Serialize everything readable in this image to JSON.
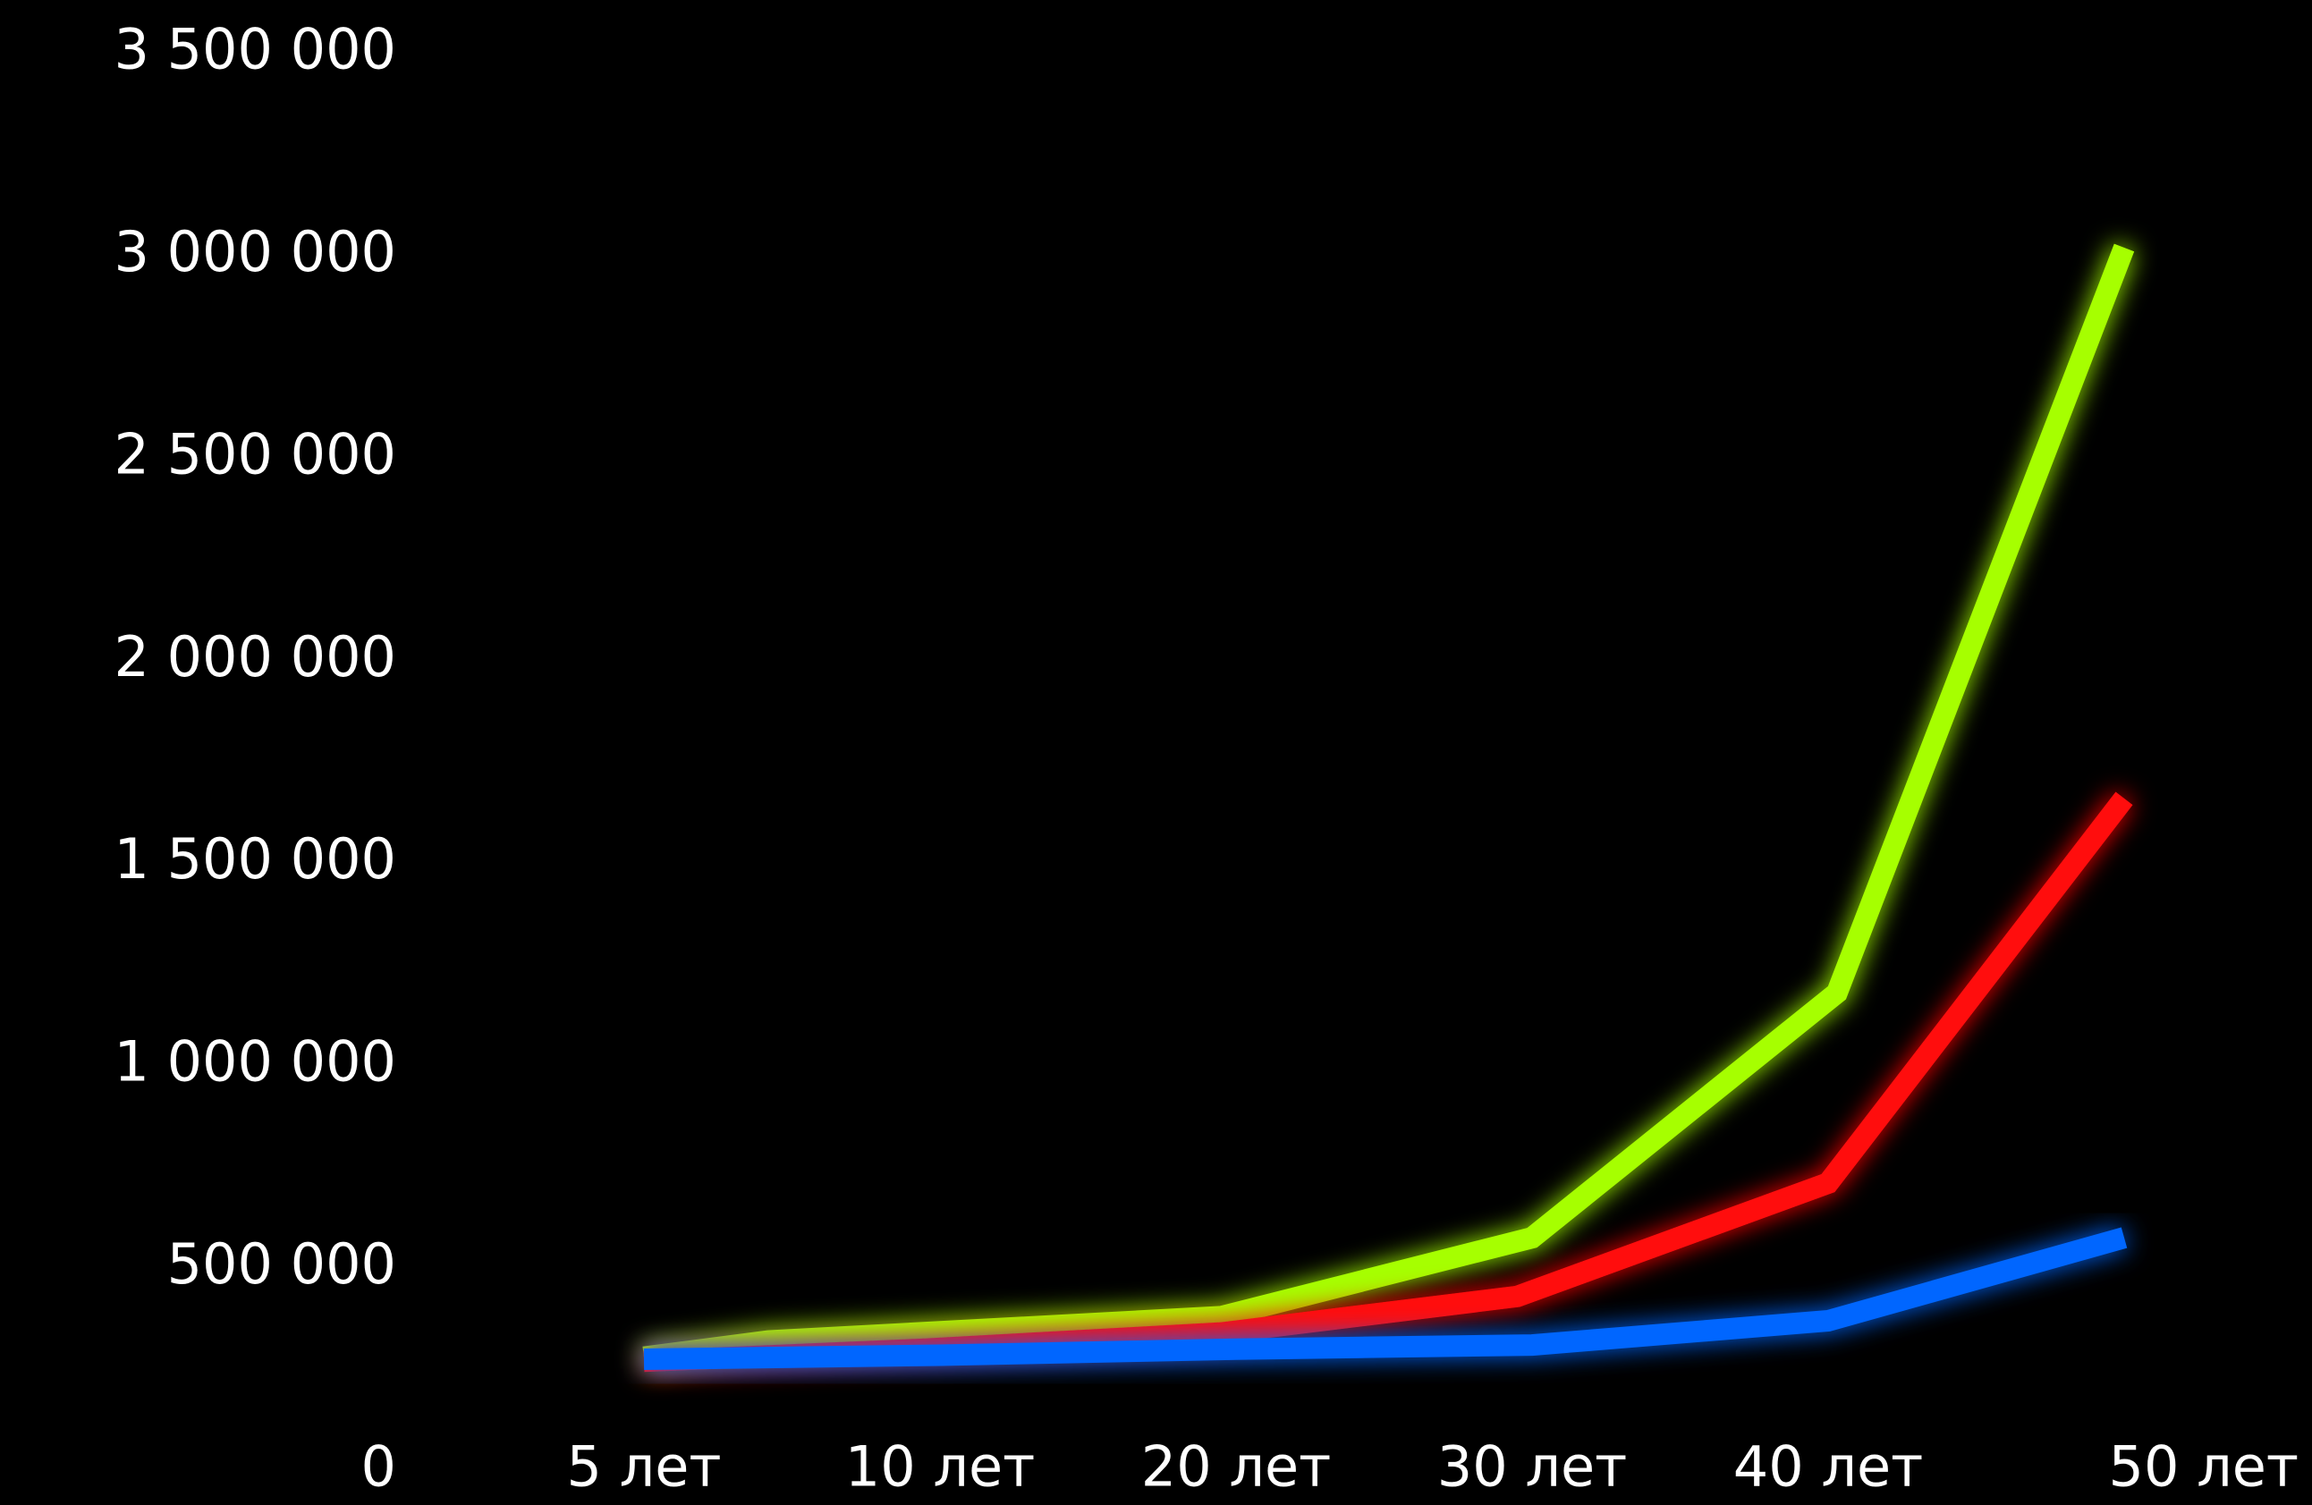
{
  "chart_data": {
    "type": "line",
    "title": "",
    "xlabel": "",
    "ylabel": "",
    "categories": [
      "5 лет",
      "10 лет",
      "20 лет",
      "30 лет",
      "40 лет",
      "50 лет"
    ],
    "ylim": [
      0,
      3500000
    ],
    "y_ticks": [
      "0",
      "500 000",
      "1 000 000",
      "1 500 000",
      "2 000 000",
      "2 500 000",
      "3 000 000",
      "3 500 000"
    ],
    "y_tick_values": [
      0,
      500000,
      1000000,
      1500000,
      2000000,
      2500000,
      3000000,
      3500000
    ],
    "grid": false,
    "legend": "none",
    "background": "#000000",
    "series": [
      {
        "color": "#a6ff00",
        "points": [
          {
            "x": 0.0,
            "y": 270000
          },
          {
            "x": 0.42,
            "y": 310000
          },
          {
            "x": 1.95,
            "y": 370000
          },
          {
            "x": 3.0,
            "y": 565000
          },
          {
            "x": 4.03,
            "y": 1170000
          },
          {
            "x": 5.0,
            "y": 3010000
          }
        ]
      },
      {
        "color": "#ff0f0f",
        "points": [
          {
            "x": 0.0,
            "y": 260000
          },
          {
            "x": 0.95,
            "y": 290000
          },
          {
            "x": 1.95,
            "y": 330000
          },
          {
            "x": 2.95,
            "y": 420000
          },
          {
            "x": 4.0,
            "y": 700000
          },
          {
            "x": 5.0,
            "y": 1650000
          }
        ]
      },
      {
        "color": "#0066ff",
        "points": [
          {
            "x": 0.0,
            "y": 265000
          },
          {
            "x": 1.0,
            "y": 275000
          },
          {
            "x": 2.0,
            "y": 290000
          },
          {
            "x": 3.0,
            "y": 300000
          },
          {
            "x": 4.0,
            "y": 360000
          },
          {
            "x": 5.0,
            "y": 565000
          }
        ]
      }
    ]
  }
}
